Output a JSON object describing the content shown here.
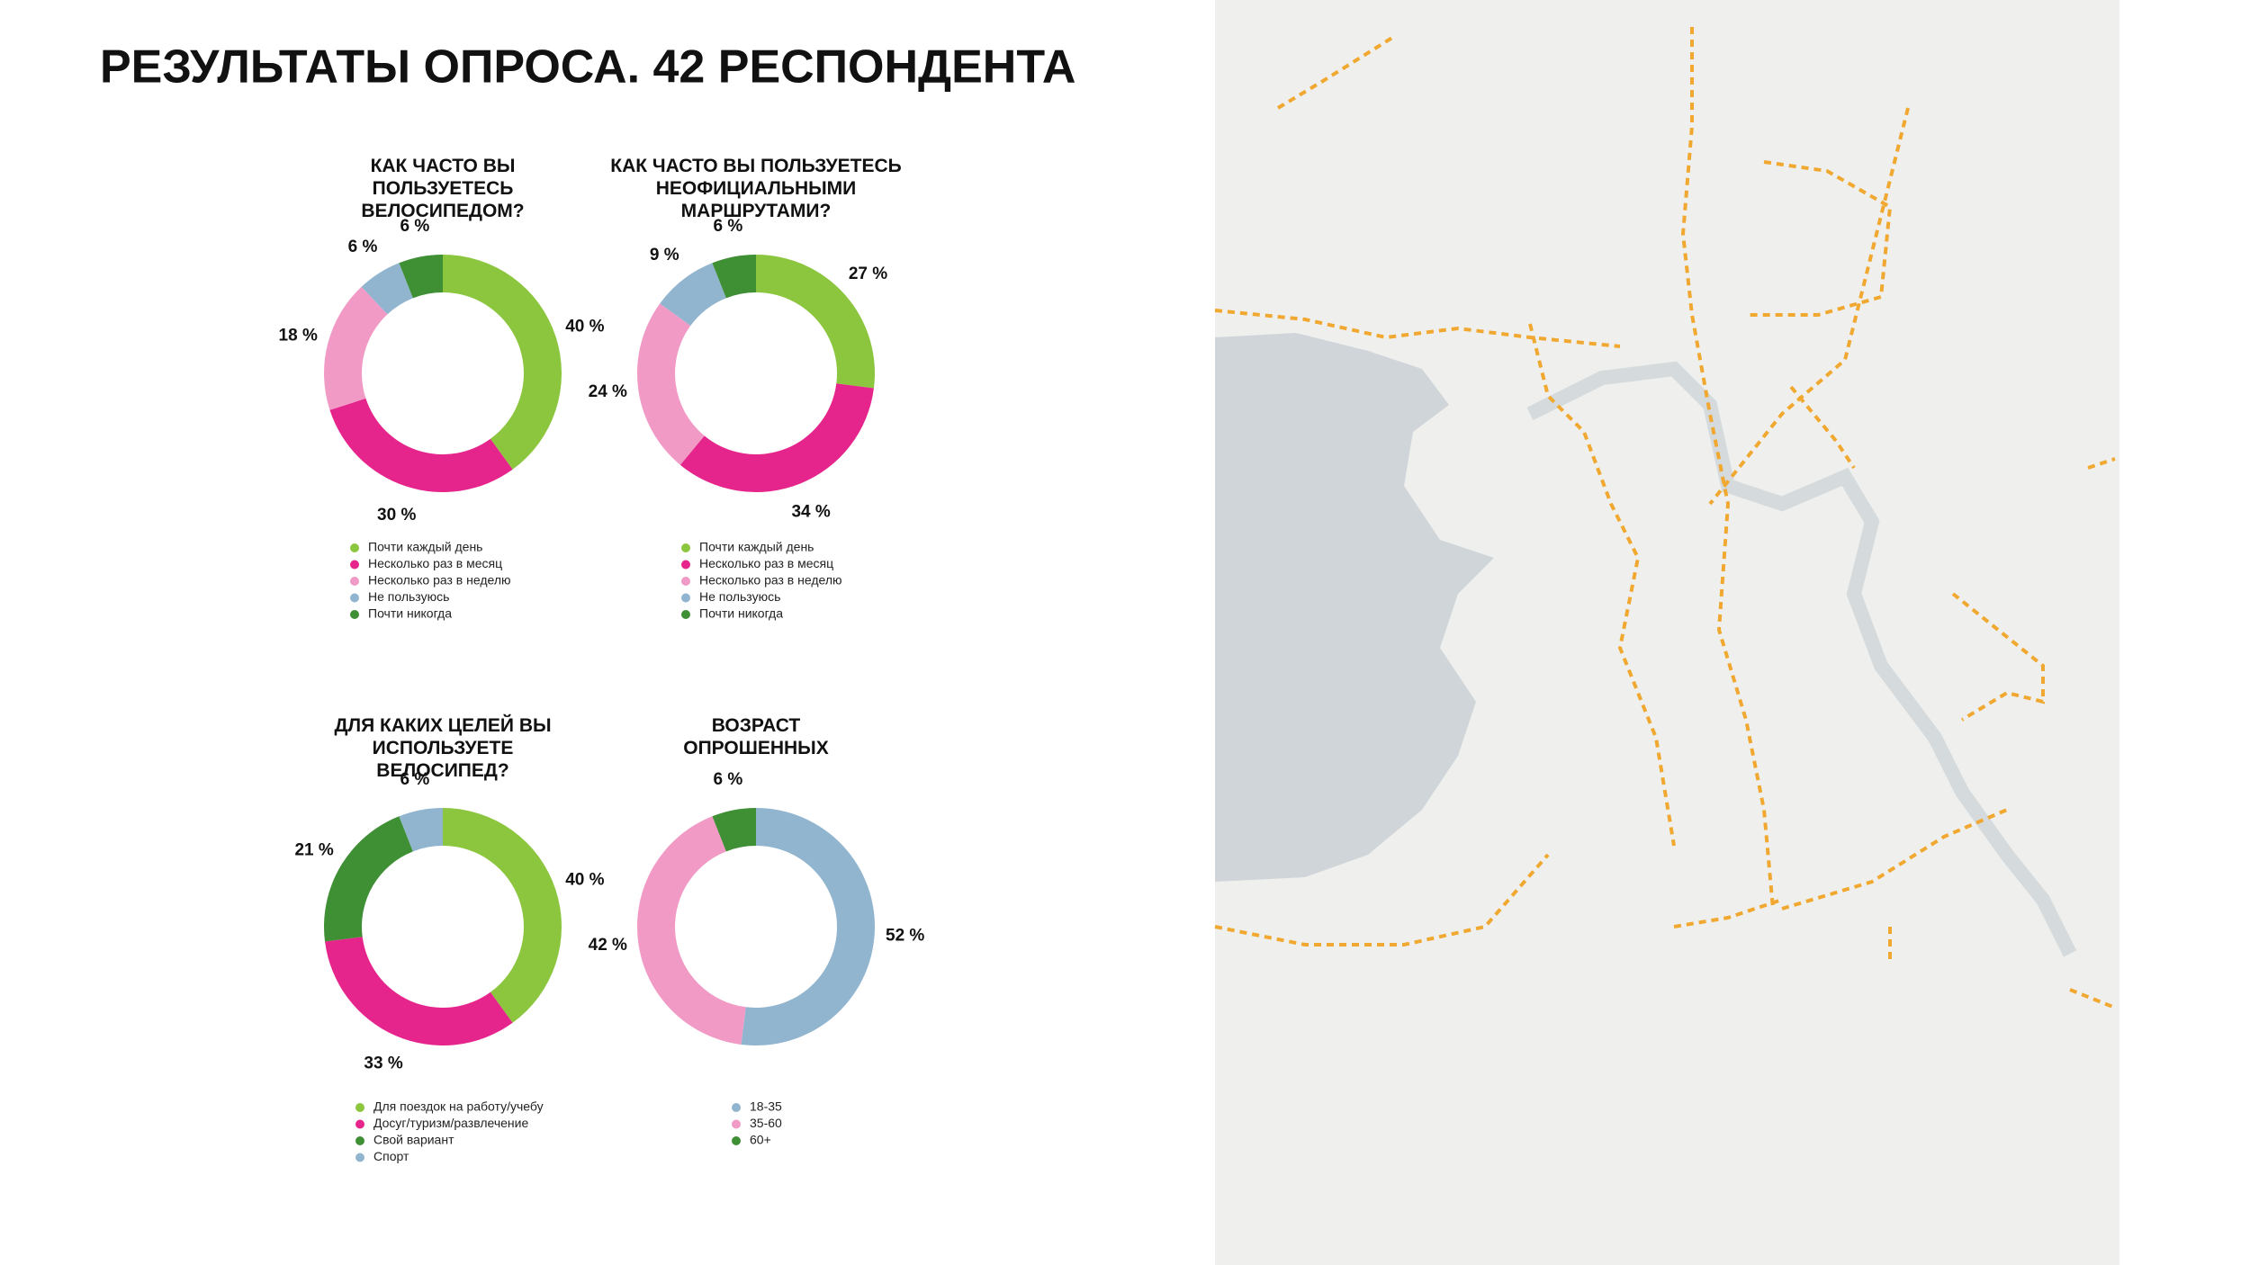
{
  "title": "РЕЗУЛЬТАТЫ ОПРОСА. 42 РЕСПОНДЕНТА",
  "chart_data": [
    {
      "type": "donut",
      "title": "КАК ЧАСТО ВЫ ПОЛЬЗУЕТЕСЬ ВЕЛОСИПЕДОМ?",
      "categories": [
        "Почти каждый день",
        "Несколько раз в месяц",
        "Несколько раз в неделю",
        "Не пользуюсь",
        "Почти никогда"
      ],
      "values": [
        40,
        30,
        18,
        6,
        6
      ],
      "value_labels": [
        "40 %",
        "30 %",
        "18 %",
        "6 %",
        "6 %"
      ],
      "colors": [
        "#8cc63f",
        "#e5258c",
        "#f29ac6",
        "#92b5cf",
        "#3f8f35"
      ]
    },
    {
      "type": "donut",
      "title": "КАК ЧАСТО ВЫ ПОЛЬЗУЕТЕСЬ НЕОФИЦИАЛЬНЫМИ МАРШРУТАМИ?",
      "categories": [
        "Почти каждый день",
        "Несколько раз в месяц",
        "Несколько раз в неделю",
        "Не пользуюсь",
        "Почти никогда"
      ],
      "values": [
        27,
        34,
        24,
        9,
        6
      ],
      "value_labels": [
        "27 %",
        "34 %",
        "24 %",
        "9 %",
        "6 %"
      ],
      "colors": [
        "#8cc63f",
        "#e5258c",
        "#f29ac6",
        "#92b5cf",
        "#3f8f35"
      ]
    },
    {
      "type": "donut",
      "title": "ДЛЯ КАКИХ ЦЕЛЕЙ ВЫ ИСПОЛЬЗУЕТЕ ВЕЛОСИПЕД?",
      "categories": [
        "Для поездок на работу/учебу",
        "Досуг/туризм/развлечение",
        "Свой вариант",
        "Спорт"
      ],
      "values": [
        40,
        33,
        21,
        6
      ],
      "value_labels": [
        "40 %",
        "33 %",
        "21 %",
        "6 %"
      ],
      "colors": [
        "#8cc63f",
        "#e5258c",
        "#3f8f35",
        "#92b5cf"
      ]
    },
    {
      "type": "donut",
      "title": "ВОЗРАСТ ОПРОШЕННЫХ",
      "categories": [
        "18-35",
        "35-60",
        "60+"
      ],
      "values": [
        52,
        42,
        6
      ],
      "value_labels": [
        "52 %",
        "42 %",
        "6 %"
      ],
      "colors": [
        "#92b5cf",
        "#f29ac6",
        "#3f8f35"
      ]
    }
  ]
}
